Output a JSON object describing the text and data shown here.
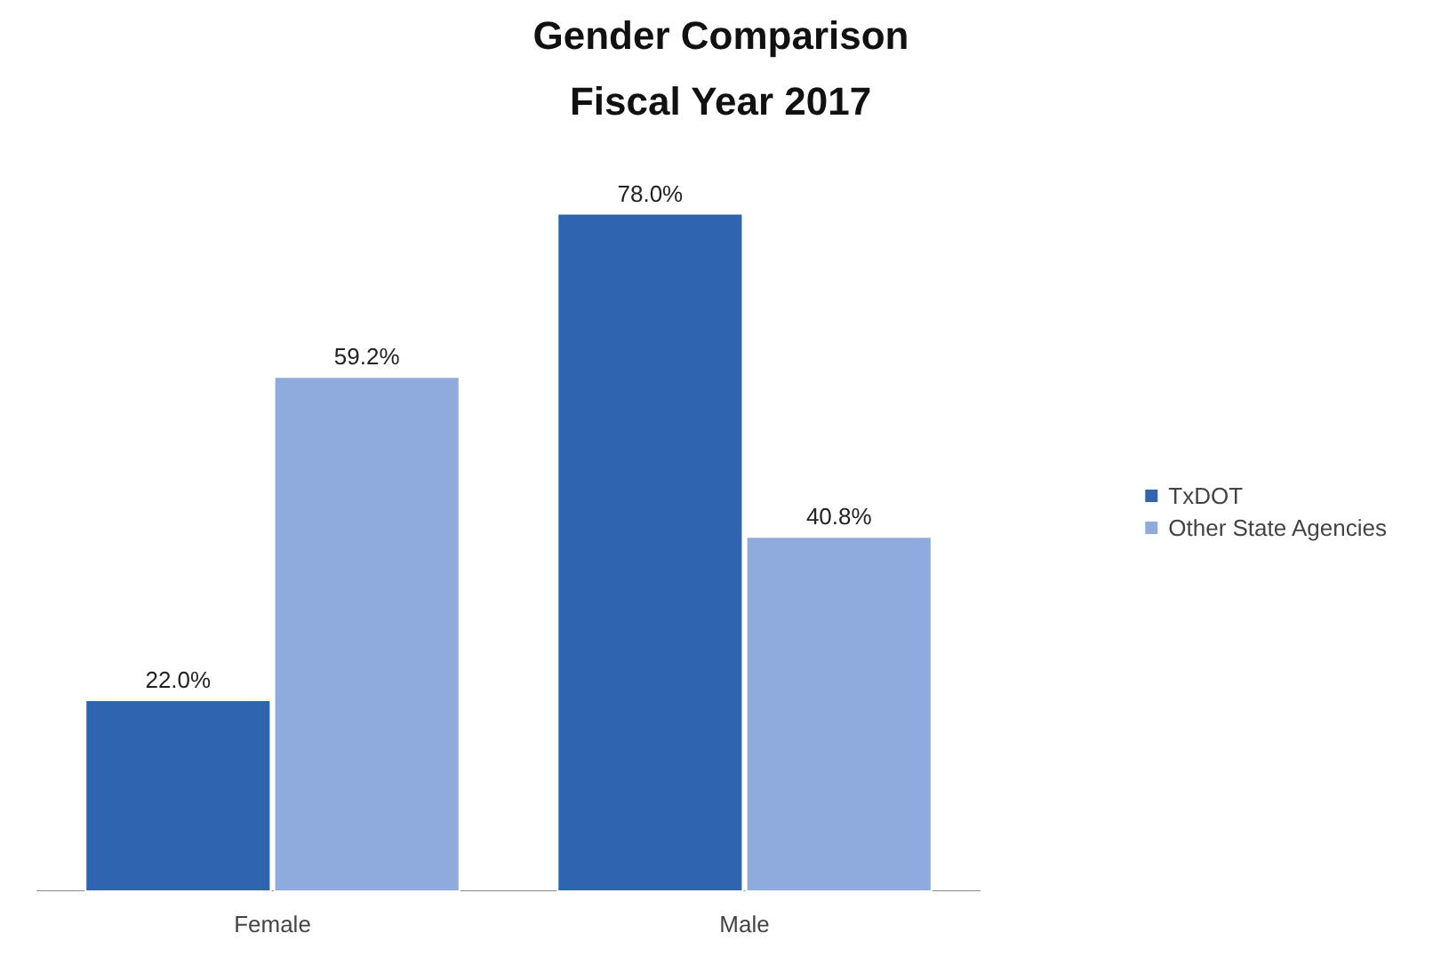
{
  "chart_data": {
    "type": "bar",
    "title": "Gender Comparison",
    "subtitle": "Fiscal Year 2017",
    "categories": [
      "Female",
      "Male"
    ],
    "series": [
      {
        "name": "TxDOT",
        "color": "#2e64b0",
        "values": [
          22.0,
          78.0
        ],
        "value_labels": [
          "22.0%",
          "78.0%"
        ]
      },
      {
        "name": "Other State Agencies",
        "color": "#8faadc",
        "values": [
          59.2,
          40.8
        ],
        "value_labels": [
          "59.2%",
          "40.8%"
        ]
      }
    ],
    "legend": "right",
    "grid": false
  }
}
